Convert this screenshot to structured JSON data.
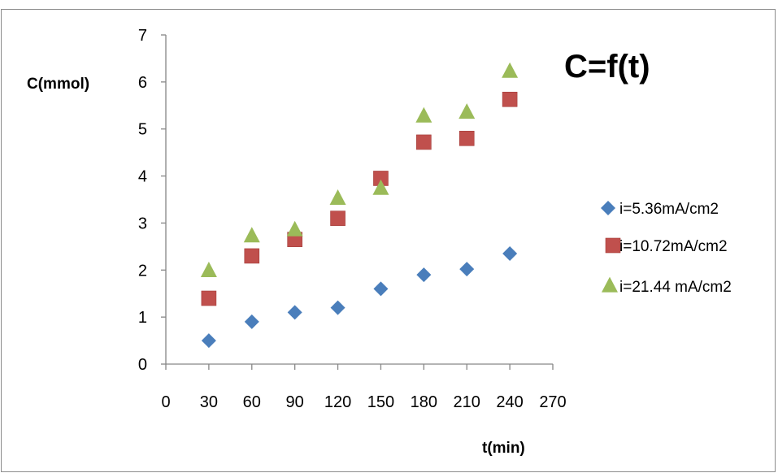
{
  "chart_data": {
    "type": "scatter",
    "title": "C=f(t)",
    "xlabel": "t(min)",
    "ylabel": "C(mmol)",
    "xlim": [
      0,
      270
    ],
    "ylim": [
      0,
      7
    ],
    "xticks": [
      "0",
      "30",
      "60",
      "90",
      "120",
      "150",
      "180",
      "210",
      "240",
      "270"
    ],
    "yticks": [
      "0",
      "1",
      "2",
      "3",
      "4",
      "5",
      "6",
      "7"
    ],
    "grid": false,
    "legend_position": "right",
    "series": [
      {
        "name": "i=5.36mA/cm2",
        "marker": "diamond",
        "color": "#4a7ebb",
        "x": [
          30,
          60,
          90,
          120,
          150,
          180,
          210,
          240
        ],
        "y": [
          0.5,
          0.9,
          1.1,
          1.2,
          1.6,
          1.9,
          2.02,
          2.35
        ]
      },
      {
        "name": "i=10.72mA/cm2",
        "marker": "square",
        "color": "#c0504d",
        "x": [
          30,
          60,
          90,
          120,
          150,
          180,
          210,
          240
        ],
        "y": [
          1.4,
          2.3,
          2.65,
          3.1,
          3.95,
          4.72,
          4.8,
          5.63
        ]
      },
      {
        "name": "i=21.44 mA/cm2",
        "marker": "triangle",
        "color": "#9bbb59",
        "x": [
          30,
          60,
          90,
          120,
          150,
          180,
          210,
          240
        ],
        "y": [
          1.98,
          2.72,
          2.85,
          3.52,
          3.73,
          5.27,
          5.35,
          6.22
        ]
      }
    ]
  }
}
